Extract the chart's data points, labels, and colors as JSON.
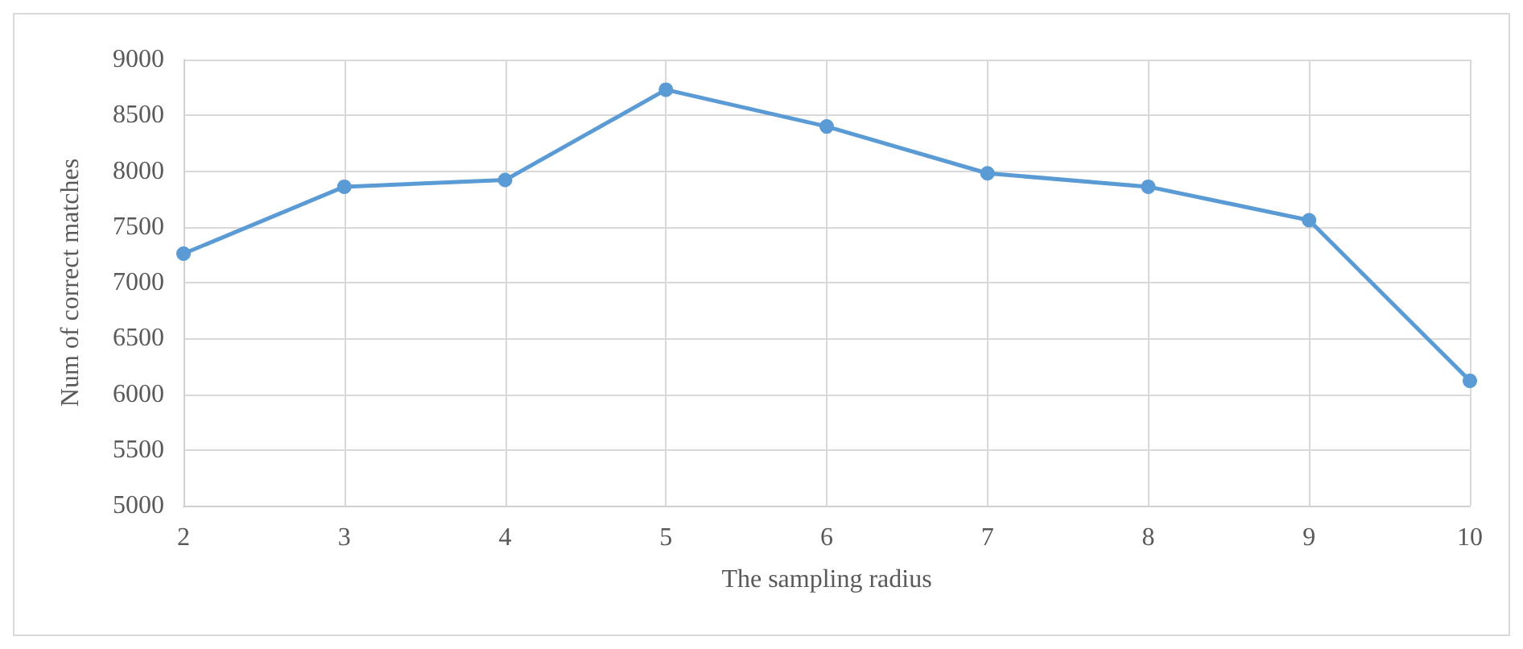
{
  "chart_data": {
    "type": "line",
    "xlabel": "The sampling radius",
    "ylabel": "Num of correct matches",
    "x": [
      2,
      3,
      4,
      5,
      6,
      7,
      8,
      9,
      10
    ],
    "series": [
      {
        "color": "#5b9bd5",
        "values": [
          7260,
          7860,
          7920,
          8730,
          8400,
          7980,
          7860,
          7560,
          6120
        ]
      }
    ],
    "xlim": [
      2,
      10
    ],
    "xticks": [
      2,
      3,
      4,
      5,
      6,
      7,
      8,
      9,
      10
    ],
    "ylim": [
      5000,
      9000
    ],
    "yticks": [
      5000,
      5500,
      6000,
      6500,
      7000,
      7500,
      8000,
      8500,
      9000
    ],
    "grid": true,
    "marker": "circle",
    "line_style": "solid"
  }
}
